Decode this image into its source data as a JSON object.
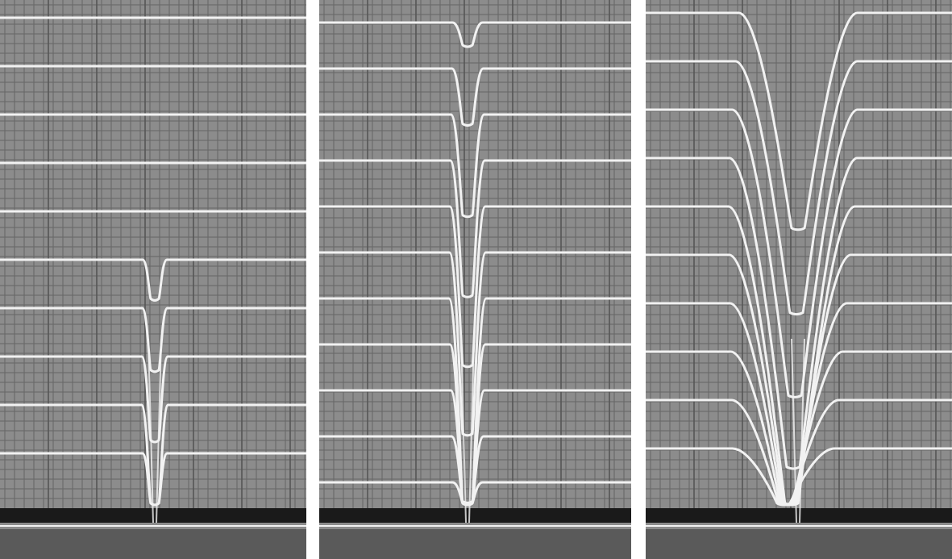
{
  "figure": {
    "panels": [
      {
        "id": "left",
        "trace_count": 10,
        "trace_style": "narrow-dip",
        "dip_depths": [
          0,
          0,
          0,
          0,
          0,
          0.1,
          0.16,
          0.22,
          0.34,
          0.6
        ]
      },
      {
        "id": "middle",
        "trace_count": 11,
        "trace_style": "narrow-dip",
        "dip_depths": [
          0.05,
          0.12,
          0.22,
          0.3,
          0.36,
          0.42,
          0.48,
          0.54,
          0.6,
          0.66,
          0.72
        ]
      },
      {
        "id": "right",
        "trace_count": 10,
        "trace_style": "wide-dip",
        "dip_depths": [
          0.42,
          0.5,
          0.58,
          0.64,
          0.7,
          0.76,
          0.82,
          0.86,
          0.9,
          0.95
        ]
      }
    ],
    "colors": {
      "background": "#8c8c8c",
      "grid": "#555555",
      "trace": "#f2f2f2",
      "band": "#1a1a1a",
      "divider": "#ffffff"
    }
  }
}
